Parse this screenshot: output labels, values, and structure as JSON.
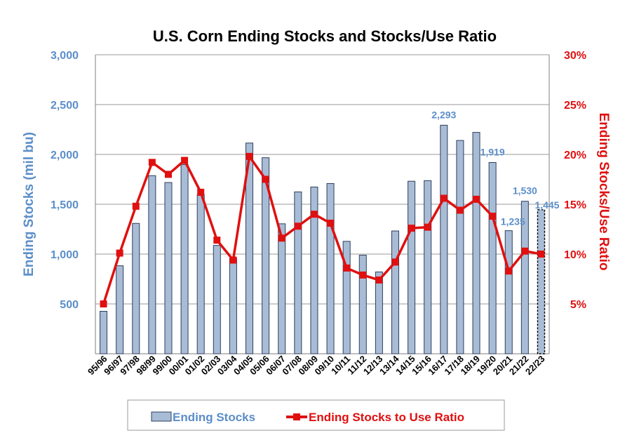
{
  "chart_data": {
    "type": "bar+line",
    "title": "U.S. Corn Ending Stocks and Stocks/Use Ratio",
    "ylabel_left": "Ending Stocks (mil bu)",
    "ylabel_right": "Ending Stocks/Use Ratio",
    "ylim_left": [
      0,
      3000
    ],
    "ylim_right": [
      0,
      30
    ],
    "yticks_left": [
      "500",
      "1,000",
      "1,500",
      "2,000",
      "2,500",
      "3,000"
    ],
    "yticks_right": [
      "5%",
      "10%",
      "15%",
      "20%",
      "25%",
      "30%"
    ],
    "categories": [
      "95/96",
      "96/97",
      "97/98",
      "98/99",
      "99/00",
      "00/01",
      "01/02",
      "02/03",
      "03/04",
      "04/05",
      "05/06",
      "06/07",
      "07/08",
      "08/09",
      "09/10",
      "10/11",
      "11/12",
      "12/13",
      "13/14",
      "14/15",
      "15/16",
      "16/17",
      "17/18",
      "18/19",
      "19/20",
      "20/21",
      "21/22",
      "22/23"
    ],
    "series": [
      {
        "name": "Ending Stocks",
        "type": "bar",
        "axis": "left",
        "color": "#a9bcd6",
        "edge_color": "#2e3f5c",
        "values": [
          426,
          883,
          1308,
          1787,
          1718,
          1899,
          1596,
          1087,
          958,
          2114,
          1967,
          1304,
          1624,
          1673,
          1708,
          1128,
          989,
          821,
          1232,
          1731,
          1737,
          2293,
          2140,
          2221,
          1919,
          1235,
          1530,
          1445
        ]
      },
      {
        "name": "Ending Stocks to Use Ratio",
        "type": "line",
        "axis": "right",
        "color": "#e01010",
        "values": [
          5.0,
          10.1,
          14.8,
          19.2,
          18.0,
          19.4,
          16.2,
          11.4,
          9.4,
          19.8,
          17.5,
          11.6,
          12.8,
          14.0,
          13.1,
          8.6,
          7.9,
          7.4,
          9.2,
          12.6,
          12.7,
          15.6,
          14.4,
          15.5,
          13.8,
          8.3,
          10.3,
          10.0
        ]
      }
    ],
    "data_labels": [
      {
        "index": 21,
        "text": "2,293"
      },
      {
        "index": 24,
        "text": "1,919"
      },
      {
        "index": 25,
        "text": "1,235"
      },
      {
        "index": 26,
        "text": "1,530"
      },
      {
        "index": 27,
        "text": "1,445"
      }
    ],
    "projected_bar_index": 27,
    "grid": true,
    "legend_position": "bottom"
  }
}
